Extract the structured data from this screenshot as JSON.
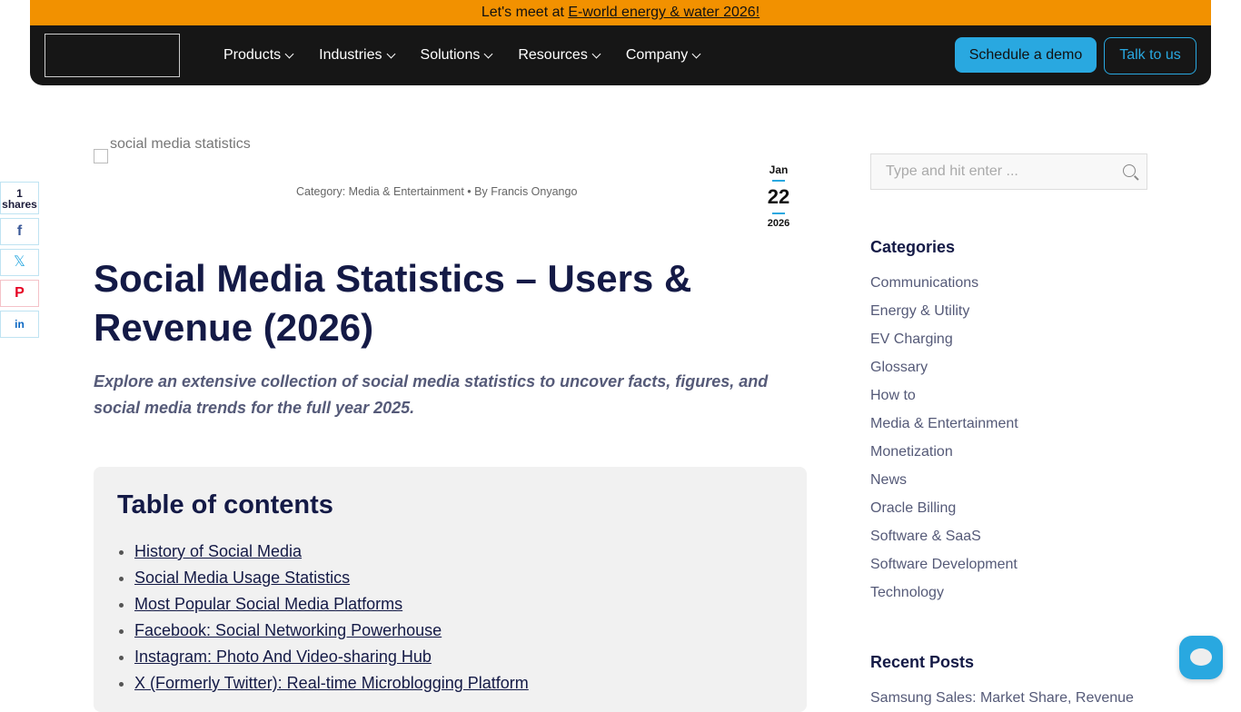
{
  "banner": {
    "prefix": "Let's meet at ",
    "link": "E-world energy & water 2026!"
  },
  "nav": {
    "items": [
      "Products",
      "Industries",
      "Solutions",
      "Resources",
      "Company"
    ],
    "schedule": "Schedule a demo",
    "talk": "Talk to us"
  },
  "share": {
    "count": "1",
    "label": "shares",
    "networks": [
      "facebook-icon",
      "x-icon",
      "pinterest-icon",
      "linkedin-icon"
    ]
  },
  "post": {
    "image_alt": "social media statistics",
    "category": "Category: Media & Entertainment",
    "author": "By Francis Onyango",
    "date": {
      "month": "Jan",
      "day": "22",
      "year": "2026"
    },
    "title": "Social Media Statistics – Users & Revenue (2026)",
    "lead": "Explore an extensive collection of social media statistics to uncover facts, figures, and social media trends for the full year 2025."
  },
  "toc": {
    "title": "Table of contents",
    "items": [
      "History of Social Media",
      "Social Media Usage Statistics",
      "Most Popular Social Media Platforms",
      "Facebook: Social Networking Powerhouse",
      "Instagram: Photo And Video-sharing Hub",
      "X (Formerly Twitter): Real-time Microblogging Platform "
    ]
  },
  "sidebar": {
    "search_placeholder": "Type and hit enter ...",
    "categories_title": "Categories",
    "categories": [
      "Communications",
      "Energy & Utility",
      "EV Charging",
      "Glossary",
      "How to",
      "Media & Entertainment",
      "Monetization",
      "News",
      "Oracle Billing",
      "Software & SaaS",
      "Software Development",
      "Technology"
    ],
    "recent_title": "Recent Posts",
    "recent": [
      "Samsung Sales: Market Share, Revenue"
    ]
  },
  "colors": {
    "banner": "#f29100",
    "accent": "#29a8e0",
    "nav": "#161616"
  }
}
